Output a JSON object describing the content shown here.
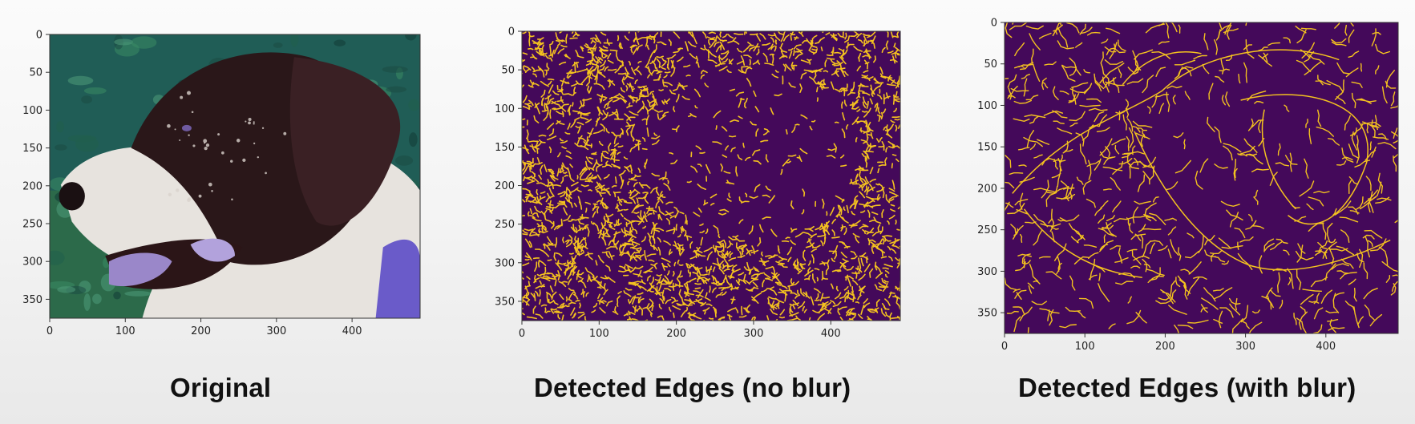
{
  "panels": [
    {
      "caption": "Original",
      "image_kind": "photo",
      "description_icon": "dog-photo",
      "x_ticks": [
        "0",
        "100",
        "200",
        "300",
        "400"
      ],
      "y_ticks": [
        "0",
        "50",
        "100",
        "150",
        "200",
        "250",
        "300",
        "350"
      ],
      "x_tick_values": [
        0,
        100,
        200,
        300,
        400
      ],
      "y_tick_values": [
        0,
        50,
        100,
        150,
        200,
        250,
        300,
        350
      ],
      "xlim": [
        0,
        490
      ],
      "ylim": [
        375,
        0
      ]
    },
    {
      "caption": "Detected Edges (no blur)",
      "image_kind": "edges-dense",
      "description_icon": "edge-map-no-blur",
      "x_ticks": [
        "0",
        "100",
        "200",
        "300",
        "400"
      ],
      "y_ticks": [
        "0",
        "50",
        "100",
        "150",
        "200",
        "250",
        "300",
        "350"
      ],
      "x_tick_values": [
        0,
        100,
        200,
        300,
        400
      ],
      "y_tick_values": [
        0,
        50,
        100,
        150,
        200,
        250,
        300,
        350
      ],
      "xlim": [
        0,
        490
      ],
      "ylim": [
        375,
        0
      ]
    },
    {
      "caption": "Detected Edges (with blur)",
      "image_kind": "edges-sparse",
      "description_icon": "edge-map-with-blur",
      "x_ticks": [
        "0",
        "100",
        "200",
        "300",
        "400"
      ],
      "y_ticks": [
        "0",
        "50",
        "100",
        "150",
        "200",
        "250",
        "300",
        "350"
      ],
      "x_tick_values": [
        0,
        100,
        200,
        300,
        400
      ],
      "y_tick_values": [
        0,
        50,
        100,
        150,
        200,
        250,
        300,
        350
      ],
      "xlim": [
        0,
        490
      ],
      "ylim": [
        375,
        0
      ]
    }
  ],
  "colors": {
    "edge_background": "#44095a",
    "edge_line": "#f4c21f",
    "photo_grass": "#2c6a4a",
    "dog_dark": "#2a1719",
    "dog_white": "#e7e3de",
    "collar": "#6a5bc9"
  }
}
